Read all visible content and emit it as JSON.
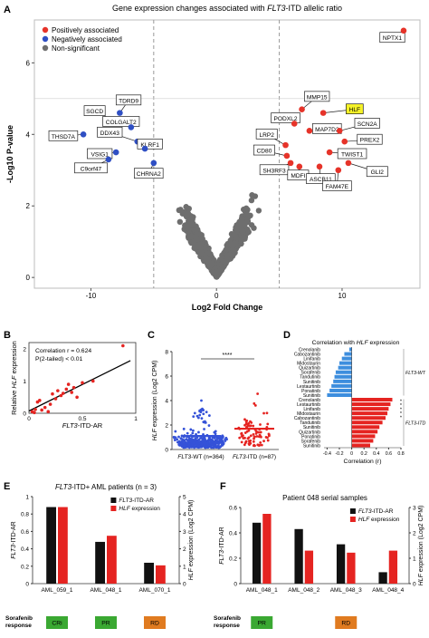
{
  "panels": {
    "A": "A",
    "B": "B",
    "C": "C",
    "D": "D",
    "E": "E",
    "F": "F"
  },
  "colors": {
    "positive": "#e63329",
    "negative": "#2f4fc4",
    "nonsig": "#6e6e6e",
    "red": "#e52421",
    "black": "#111111",
    "blue_bar": "#3d8ede",
    "green": "#3aa832",
    "orange": "#e07b20",
    "highlight": "#f5f227"
  },
  "chart_data": [
    {
      "id": "volcano",
      "type": "scatter",
      "title_prefix": "Gene expression changes associated with ",
      "title_gene": "FLT3",
      "title_suffix": "-ITD allelic ratio",
      "xlabel": "Log2 Fold Change",
      "ylabel": "-Log10 P-value",
      "xlim": [
        -14.5,
        16.2
      ],
      "ylim": [
        -0.3,
        7.2
      ],
      "xticks": [
        -10,
        0,
        10
      ],
      "yticks": [
        0,
        2,
        4,
        6
      ],
      "threshold_x": [
        -5,
        5
      ],
      "threshold_y": 5,
      "legend": [
        "Positively associated",
        "Negatively associated",
        "Non-significant"
      ],
      "legend_position": "top-left",
      "positive_points": [
        {
          "gene": "NPTX1",
          "x": 14.9,
          "y": 6.9
        },
        {
          "gene": "MMP15",
          "x": 6.8,
          "y": 4.7
        },
        {
          "gene": "HLF",
          "x": 8.5,
          "y": 4.6
        },
        {
          "gene": "PODXL2",
          "x": 6.2,
          "y": 4.3
        },
        {
          "gene": "MAP7D2",
          "x": 7.4,
          "y": 4.1
        },
        {
          "gene": "SCN2A",
          "x": 9.8,
          "y": 4.1
        },
        {
          "gene": "PREX2",
          "x": 10.2,
          "y": 3.8
        },
        {
          "gene": "LRP2",
          "x": 5.5,
          "y": 3.7
        },
        {
          "gene": "TWIST1",
          "x": 9.0,
          "y": 3.5
        },
        {
          "gene": "CD80",
          "x": 5.6,
          "y": 3.4
        },
        {
          "gene": "SH3RF3",
          "x": 5.9,
          "y": 3.2
        },
        {
          "gene": "MDFI",
          "x": 6.6,
          "y": 3.1
        },
        {
          "gene": "ASCB11",
          "x": 8.2,
          "y": 3.1
        },
        {
          "gene": "GLI2",
          "x": 10.5,
          "y": 3.2
        },
        {
          "gene": "FAM47E",
          "x": 9.7,
          "y": 3.0
        }
      ],
      "negative_points": [
        {
          "gene": "SGCD",
          "x": -8.2,
          "y": 4.4
        },
        {
          "gene": "TDRD9",
          "x": -7.7,
          "y": 4.6
        },
        {
          "gene": "COLGALT2",
          "x": -6.8,
          "y": 4.2
        },
        {
          "gene": "THSD7A",
          "x": -10.6,
          "y": 4.0
        },
        {
          "gene": "DDX43",
          "x": -6.3,
          "y": 3.8
        },
        {
          "gene": "KLRF1",
          "x": -5.7,
          "y": 3.6
        },
        {
          "gene": "VSIG1",
          "x": -8.0,
          "y": 3.5
        },
        {
          "gene": "C9orf47",
          "x": -8.6,
          "y": 3.3
        },
        {
          "gene": "CHRNA2",
          "x": -5.0,
          "y": 3.2
        }
      ],
      "highlight_gene": "HLF"
    },
    {
      "id": "B",
      "type": "scatter",
      "xlabel_gene": "FLT3",
      "xlabel_suffix": "-ITD-AR",
      "ylabel_prefix": "Relative ",
      "ylabel_gene": "HLF",
      "ylabel_suffix": " expression",
      "xlim": [
        0,
        1
      ],
      "ylim": [
        0,
        2.2
      ],
      "xticks": [
        0,
        0.5,
        1
      ],
      "yticks": [
        0,
        1,
        2
      ],
      "annotation_1": "Correlation r = 0.624",
      "annotation_2": "P(2-tailed) < 0.01",
      "fit": {
        "slope": 1.65,
        "intercept": 0.07
      },
      "points": [
        [
          0.03,
          0.05
        ],
        [
          0.05,
          0.02
        ],
        [
          0.06,
          0.12
        ],
        [
          0.08,
          0.35
        ],
        [
          0.1,
          0.4
        ],
        [
          0.12,
          0.1
        ],
        [
          0.15,
          0.18
        ],
        [
          0.18,
          0.05
        ],
        [
          0.2,
          0.28
        ],
        [
          0.22,
          0.6
        ],
        [
          0.25,
          0.45
        ],
        [
          0.27,
          0.7
        ],
        [
          0.3,
          0.55
        ],
        [
          0.32,
          0.62
        ],
        [
          0.35,
          0.75
        ],
        [
          0.37,
          0.9
        ],
        [
          0.4,
          0.65
        ],
        [
          0.42,
          0.8
        ],
        [
          0.45,
          0.5
        ],
        [
          0.5,
          0.95
        ],
        [
          0.6,
          1.0
        ],
        [
          0.88,
          2.1
        ]
      ]
    },
    {
      "id": "C",
      "type": "scatter",
      "ylabel_gene": "HLF",
      "ylabel_suffix": " expression (Log2 CPM)",
      "ylim": [
        0,
        8
      ],
      "yticks": [
        0,
        2,
        4,
        6,
        8
      ],
      "significance": "****",
      "groups": [
        {
          "label_gene": "FLT3",
          "label_suffix": "-WT (n=364)",
          "color": "#3552d8",
          "median": 1.1
        },
        {
          "label_gene": "FLT3",
          "label_suffix": "-ITD (n=87)",
          "color": "#e52421",
          "median": 1.7
        }
      ]
    },
    {
      "id": "D",
      "type": "bar",
      "title_prefix": "Correlation with ",
      "title_gene": "HLF",
      "title_suffix": " expression",
      "xlabel": "Correlation (r)",
      "xlim": [
        -0.45,
        0.8
      ],
      "xticks": [
        -0.4,
        -0.2,
        0,
        0.2,
        0.4,
        0.6,
        0.8
      ],
      "xtick_labels": [
        "-0.4",
        "-0.2",
        "0",
        "0.2",
        "0.4",
        "0.6",
        "0.8"
      ],
      "group_wt": "FLT3-WT",
      "group_itd": "FLT3-ITD",
      "wt_drugs": [
        "Crenolanib",
        "Cabozantinib",
        "Linifanib",
        "Midostaurin",
        "Quizartinib",
        "Sorafenib",
        "Tandutinib",
        "Sunitinib",
        "Lestaurtinib",
        "Ponatinib",
        "Sunitinib"
      ],
      "wt_values": [
        -0.04,
        -0.12,
        -0.16,
        -0.2,
        -0.22,
        -0.26,
        -0.28,
        -0.3,
        -0.33,
        -0.36,
        -0.4
      ],
      "itd_drugs": [
        "Crenolanib",
        "Lestaurtinib",
        "Linifanib",
        "Midostaurin",
        "Cabozantinib",
        "Tandutinib",
        "Sunitinib",
        "Quizartinib",
        "Ponatinib",
        "Sorafenib",
        "Sunitinib"
      ],
      "itd_values": [
        0.66,
        0.63,
        0.6,
        0.58,
        0.55,
        0.5,
        0.45,
        0.42,
        0.38,
        0.35,
        0.3
      ],
      "stars": [
        "*",
        "*",
        "*",
        "*",
        "*"
      ]
    },
    {
      "id": "E",
      "type": "bar",
      "title_gene": "FLT3",
      "title_suffix": "-ITD+ AML patients (n = 3)",
      "categories": [
        "AML_059_1",
        "AML_048_1",
        "AML_070_1"
      ],
      "ylabel_left_gene": "FLT3",
      "ylabel_left_suffix": "-ITD-AR",
      "ylabel_right_gene": "HLF",
      "ylabel_right_suffix": " expression (Log2 CPM)",
      "ylim_left": [
        0,
        1
      ],
      "yticks_left": [
        0,
        0.2,
        0.4,
        0.6,
        0.8,
        1
      ],
      "ylim_right": [
        0,
        5
      ],
      "yticks_right": [
        0,
        1,
        2,
        3,
        4,
        5
      ],
      "series": [
        {
          "name_gene": "FLT3",
          "name_suffix": "-ITD-AR",
          "axis": "left",
          "values": [
            0.88,
            0.48,
            0.24
          ]
        },
        {
          "name_gene": "HLF",
          "name_suffix": " expression",
          "axis": "right",
          "values": [
            4.4,
            2.75,
            1.05
          ]
        }
      ],
      "response_label_1": "Sorafenib",
      "response_label_2": "response",
      "responses": [
        {
          "label": "CRi",
          "color": "#3aa832"
        },
        {
          "label": "PR",
          "color": "#3aa832"
        },
        {
          "label": "RD",
          "color": "#e07b20"
        }
      ]
    },
    {
      "id": "F",
      "type": "bar",
      "title": "Patient 048 serial samples",
      "categories": [
        "AML_048_1",
        "AML_048_2",
        "AML_048_3",
        "AML_048_4"
      ],
      "ylabel_left_gene": "FLT3",
      "ylabel_left_suffix": "-ITD-AR",
      "ylabel_right_gene": "HLF",
      "ylabel_right_suffix": " expression (Log2 CPM)",
      "ylim_left": [
        0,
        0.6
      ],
      "yticks_left": [
        0,
        0.2,
        0.4,
        0.6
      ],
      "ylim_right": [
        0,
        3
      ],
      "yticks_right": [
        0,
        1,
        2,
        3
      ],
      "series": [
        {
          "name_gene": "FLT3",
          "name_suffix": "-ITD-AR",
          "axis": "left",
          "values": [
            0.48,
            0.43,
            0.31,
            0.09
          ]
        },
        {
          "name_gene": "HLF",
          "name_suffix": " expression",
          "axis": "right",
          "values": [
            2.75,
            1.3,
            1.22,
            1.3
          ]
        }
      ],
      "response_label_1": "Sorafenib",
      "response_label_2": "response",
      "responses": [
        {
          "label": "PR",
          "color": "#3aa832",
          "category_index": 0
        },
        {
          "label": "RD",
          "color": "#e07b20",
          "category_index": 2
        }
      ]
    }
  ]
}
